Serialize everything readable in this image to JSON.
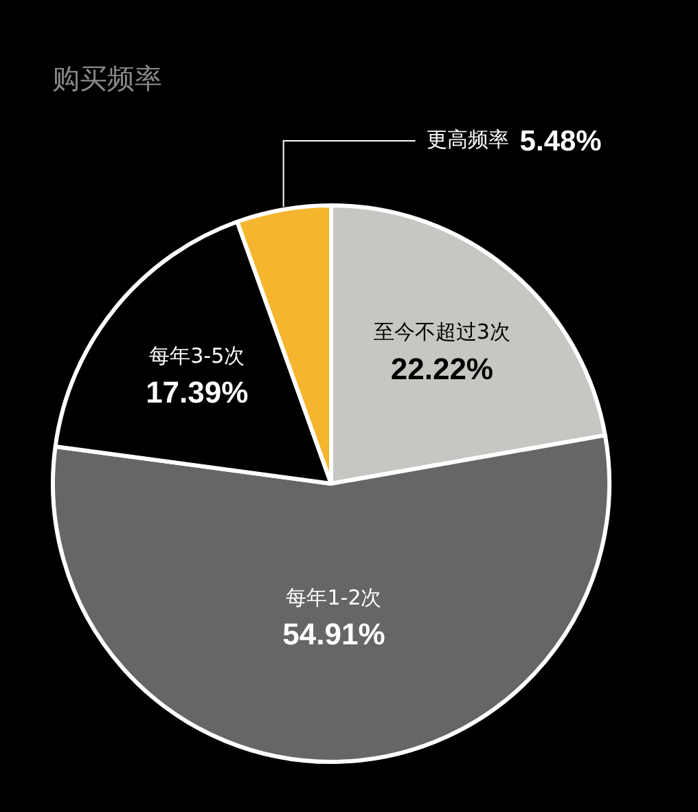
{
  "chart_data": {
    "type": "pie",
    "title": "购买频率",
    "categories": [
      "至今不超过3次",
      "每年1-2次",
      "每年3-5次",
      "更高频率"
    ],
    "values": [
      22.22,
      54.91,
      17.39,
      5.48
    ],
    "colors": [
      "#c6c6c2",
      "#666666",
      "#000000",
      "#f6b52e"
    ],
    "value_labels": [
      "22.22%",
      "54.91%",
      "17.39%",
      "5.48%"
    ],
    "legend": false
  }
}
